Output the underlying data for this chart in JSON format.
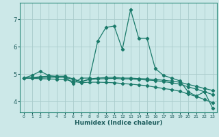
{
  "xlabel": "Humidex (Indice chaleur)",
  "bg_color": "#cce8e8",
  "grid_color": "#aacccc",
  "line_color": "#1a7a6a",
  "xlim": [
    -0.5,
    23.5
  ],
  "ylim": [
    3.6,
    7.6
  ],
  "yticks": [
    4,
    5,
    6,
    7
  ],
  "xticks": [
    0,
    1,
    2,
    3,
    4,
    5,
    6,
    7,
    8,
    9,
    10,
    11,
    12,
    13,
    14,
    15,
    16,
    17,
    18,
    19,
    20,
    21,
    22,
    23
  ],
  "lines": [
    {
      "x": [
        0,
        1,
        2,
        3,
        4,
        5,
        6,
        7,
        8,
        9,
        10,
        11,
        12,
        13,
        14,
        15,
        16,
        17,
        18,
        19,
        20,
        21,
        22,
        23
      ],
      "y": [
        4.85,
        4.95,
        5.1,
        4.95,
        4.9,
        4.9,
        4.65,
        4.85,
        4.85,
        6.2,
        6.7,
        6.75,
        5.9,
        7.35,
        6.3,
        6.3,
        5.2,
        4.95,
        4.85,
        4.75,
        4.35,
        4.2,
        4.35,
        3.75
      ]
    },
    {
      "x": [
        0,
        1,
        2,
        3,
        4,
        5,
        6,
        7,
        8,
        9,
        10,
        11,
        12,
        13,
        14,
        15,
        16,
        17,
        18,
        19,
        20,
        21,
        22,
        23
      ],
      "y": [
        4.85,
        4.87,
        4.9,
        4.92,
        4.92,
        4.92,
        4.82,
        4.72,
        4.82,
        4.85,
        4.87,
        4.88,
        4.85,
        4.85,
        4.83,
        4.82,
        4.8,
        4.77,
        4.74,
        4.7,
        4.62,
        4.55,
        4.47,
        4.4
      ]
    },
    {
      "x": [
        0,
        1,
        2,
        3,
        4,
        5,
        6,
        7,
        8,
        9,
        10,
        11,
        12,
        13,
        14,
        15,
        16,
        17,
        18,
        19,
        20,
        21,
        22,
        23
      ],
      "y": [
        4.85,
        4.86,
        4.87,
        4.88,
        4.88,
        4.88,
        4.8,
        4.72,
        4.8,
        4.82,
        4.83,
        4.84,
        4.82,
        4.82,
        4.8,
        4.78,
        4.76,
        4.72,
        4.68,
        4.63,
        4.53,
        4.45,
        4.35,
        4.25
      ]
    },
    {
      "x": [
        0,
        1,
        2,
        3,
        4,
        5,
        6,
        7,
        8,
        9,
        10,
        11,
        12,
        13,
        14,
        15,
        16,
        17,
        18,
        19,
        20,
        21,
        22,
        23
      ],
      "y": [
        4.85,
        4.84,
        4.83,
        4.82,
        4.81,
        4.8,
        4.73,
        4.68,
        4.7,
        4.7,
        4.69,
        4.68,
        4.65,
        4.63,
        4.6,
        4.57,
        4.52,
        4.47,
        4.43,
        4.37,
        4.27,
        4.18,
        4.07,
        3.95
      ]
    }
  ]
}
